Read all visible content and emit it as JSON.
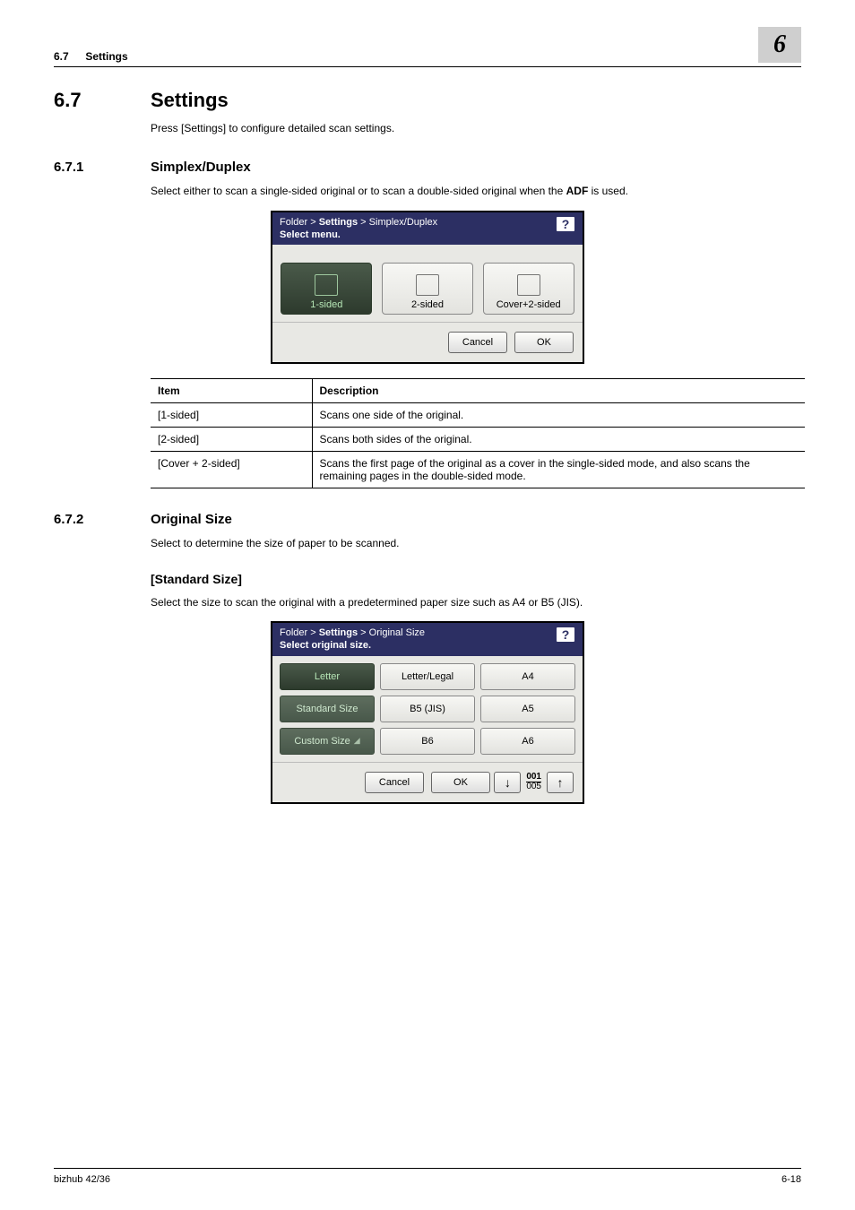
{
  "header": {
    "sec_num": "6.7",
    "sec_title": "Settings",
    "chapter_badge": "6"
  },
  "s67": {
    "num": "6.7",
    "title": "Settings",
    "intro": "Press [Settings] to configure detailed scan settings."
  },
  "s671": {
    "num": "6.7.1",
    "title": "Simplex/Duplex",
    "intro_a": "Select either to scan a single-sided original or to scan a double-sided original when the ",
    "intro_b": "ADF",
    "intro_c": " is used."
  },
  "dlg_simplex": {
    "breadcrumb_html": "Folder > <b>Settings</b> > Simplex/Duplex",
    "subtitle": "Select menu.",
    "options": [
      {
        "label": "1-sided",
        "selected": true
      },
      {
        "label": "2-sided",
        "selected": false
      },
      {
        "label": "Cover+2-sided",
        "selected": false
      }
    ],
    "cancel": "Cancel",
    "ok": "OK"
  },
  "simplex_table": {
    "head_item": "Item",
    "head_desc": "Description",
    "rows": [
      {
        "item": "[1-sided]",
        "desc": "Scans one side of the original."
      },
      {
        "item": "[2-sided]",
        "desc": "Scans both sides of the original."
      },
      {
        "item": "[Cover + 2-sided]",
        "desc": "Scans the first page of the original as a cover in the single-sided mode, and also scans the remaining pages in the double-sided mode."
      }
    ]
  },
  "s672": {
    "num": "6.7.2",
    "title": "Original Size",
    "intro": "Select to determine the size of paper to be scanned."
  },
  "std_size": {
    "title": "[Standard Size]",
    "intro": "Select the size to scan the original with a predetermined paper size such as A4 or B5 (JIS)."
  },
  "dlg_size": {
    "breadcrumb_html": "Folder > <b>Settings</b> > Original Size",
    "subtitle": "Select original size.",
    "grid": [
      {
        "label": "Letter",
        "style": "sel"
      },
      {
        "label": "Letter/Legal",
        "style": ""
      },
      {
        "label": "A4",
        "style": ""
      },
      {
        "label": "Standard Size",
        "style": "dark"
      },
      {
        "label": "B5 (JIS)",
        "style": ""
      },
      {
        "label": "A5",
        "style": ""
      },
      {
        "label": "Custom Size",
        "style": "dark",
        "corner": "◢"
      },
      {
        "label": "B6",
        "style": ""
      },
      {
        "label": "A6",
        "style": ""
      }
    ],
    "cancel": "Cancel",
    "ok": "OK",
    "page_top": "001",
    "page_bot": "005"
  },
  "footer": {
    "product": "bizhub 42/36",
    "page": "6-18"
  },
  "colors": {
    "header_gray": "#cfcfcf",
    "dlg_title_bg": "#2c2f63",
    "sel_green_fg": "#b6e6b6"
  }
}
